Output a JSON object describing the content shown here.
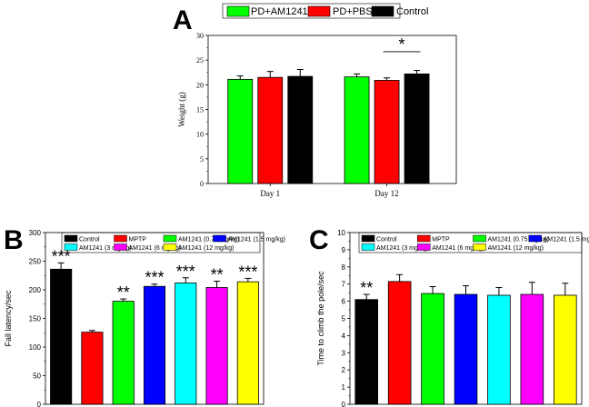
{
  "chart_data": [
    {
      "panel": "A",
      "type": "bar",
      "categories": [
        "Day 1",
        "Day 12"
      ],
      "series": [
        {
          "name": "PD+AM1241",
          "color": "#00ff00",
          "values": [
            21.1,
            21.6
          ],
          "errors": [
            0.7,
            0.6
          ]
        },
        {
          "name": "PD+PBS",
          "color": "#ff0000",
          "values": [
            21.5,
            20.9
          ],
          "errors": [
            1.2,
            0.5
          ]
        },
        {
          "name": "Control",
          "color": "#000000",
          "values": [
            21.7,
            22.2
          ],
          "errors": [
            1.4,
            0.7
          ]
        }
      ],
      "xlabel": "",
      "ylabel": "Weight (g)",
      "ylim": [
        0,
        30
      ],
      "yticks": [
        "0",
        "5",
        "10",
        "15",
        "20",
        "25",
        "30"
      ],
      "significance": [
        {
          "label": "*",
          "category": "Day 12",
          "between": [
            "PD+PBS",
            "Control"
          ]
        }
      ],
      "legend": "top"
    },
    {
      "panel": "B",
      "type": "bar",
      "categories": [
        "Control",
        "MPTP",
        "AM1241 (0.75 mg/kg)",
        "AM1241 (1.5 mg/kg)",
        "AM1241 (3 mg/kg)",
        "AM1241 (6 mg/kg)",
        "AM1241 (12 mg/kg)"
      ],
      "colors": [
        "#000000",
        "#ff0000",
        "#00ff00",
        "#0000ff",
        "#00ffff",
        "#ff00ff",
        "#ffff00"
      ],
      "values": [
        236,
        126,
        180,
        206,
        212,
        204,
        214
      ],
      "errors": [
        11,
        3,
        4,
        4,
        9,
        11,
        6
      ],
      "significance": [
        "***",
        "",
        "**",
        "***",
        "***",
        "**",
        "***"
      ],
      "xlabel": "",
      "ylabel": "Fall latency/sec",
      "ylim": [
        0,
        300
      ],
      "yticks": [
        "0",
        "50",
        "100",
        "150",
        "200",
        "250",
        "300"
      ],
      "legend": "top"
    },
    {
      "panel": "C",
      "type": "bar",
      "categories": [
        "Control",
        "MPTP",
        "AM1241 (0.75 mg/kg)",
        "AM1241 (1.5 mg/kg)",
        "AM1241 (3 mg/kg)",
        "AM1241 (6 mg/kg)",
        "AM1241 (12 mg/kg)"
      ],
      "colors": [
        "#000000",
        "#ff0000",
        "#00ff00",
        "#0000ff",
        "#00ffff",
        "#ff00ff",
        "#ffff00"
      ],
      "values": [
        6.1,
        7.15,
        6.45,
        6.4,
        6.35,
        6.4,
        6.35
      ],
      "errors": [
        0.3,
        0.4,
        0.4,
        0.5,
        0.45,
        0.7,
        0.7
      ],
      "significance": [
        "**",
        "",
        "",
        "",
        "",
        "",
        ""
      ],
      "xlabel": "",
      "ylabel": "Time to climb the pole/sec",
      "ylim": [
        0,
        10
      ],
      "yticks": [
        "0",
        "1",
        "2",
        "3",
        "4",
        "5",
        "6",
        "7",
        "8",
        "9",
        "10"
      ],
      "legend": "top"
    }
  ]
}
